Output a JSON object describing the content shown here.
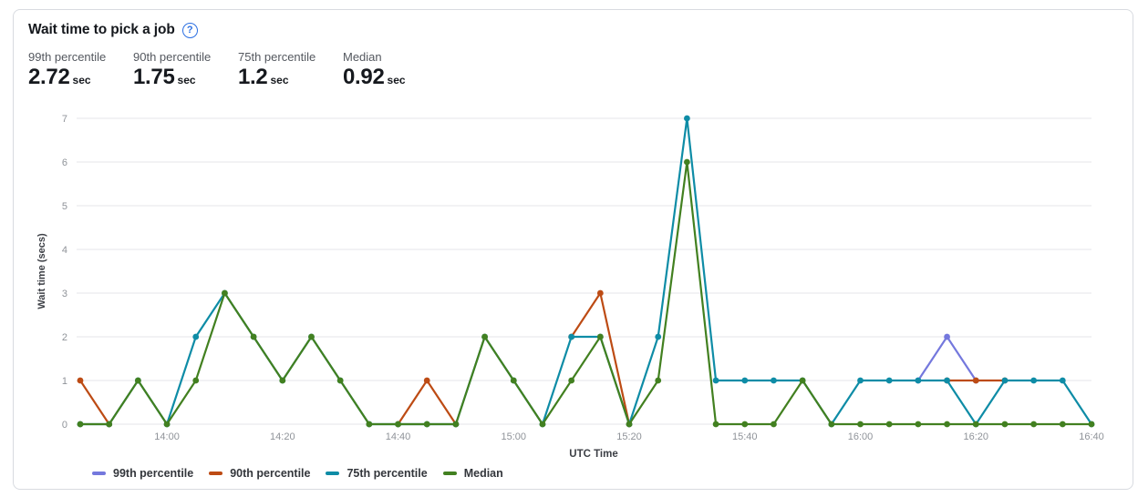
{
  "card": {
    "title": "Wait time to pick a job",
    "help_glyph": "?",
    "help_color": "#2b6fe2",
    "stats": [
      {
        "label": "99th percentile",
        "value": "2.72",
        "unit": "sec"
      },
      {
        "label": "90th percentile",
        "value": "1.75",
        "unit": "sec"
      },
      {
        "label": "75th percentile",
        "value": "1.2",
        "unit": "sec"
      },
      {
        "label": "Median",
        "value": "0.92",
        "unit": "sec"
      }
    ]
  },
  "chart_data": {
    "type": "line",
    "title": "Wait time to pick a job",
    "xlabel": "UTC Time",
    "ylabel": "Wait time (secs)",
    "ylim": [
      0,
      7
    ],
    "y_ticks": [
      0,
      1,
      2,
      3,
      4,
      5,
      6,
      7
    ],
    "grid": "horizontal",
    "grid_color": "#e4e5e8",
    "tick_label_color": "#8f9399",
    "legend_position": "bottom-left",
    "x": [
      "13:45",
      "13:50",
      "13:55",
      "14:00",
      "14:05",
      "14:10",
      "14:15",
      "14:20",
      "14:25",
      "14:30",
      "14:35",
      "14:40",
      "14:45",
      "14:50",
      "14:55",
      "15:00",
      "15:05",
      "15:10",
      "15:15",
      "15:20",
      "15:25",
      "15:30",
      "15:35",
      "15:40",
      "15:45",
      "15:50",
      "15:55",
      "16:00",
      "16:05",
      "16:10",
      "16:15",
      "16:20",
      "16:25",
      "16:30",
      "16:35",
      "16:40"
    ],
    "x_tick_labels": [
      "14:00",
      "14:20",
      "14:40",
      "15:00",
      "15:20",
      "15:40",
      "16:00",
      "16:20",
      "16:40"
    ],
    "series": [
      {
        "name": "99th percentile",
        "color": "#7478dd",
        "values": [
          null,
          null,
          null,
          null,
          null,
          null,
          null,
          null,
          null,
          null,
          null,
          null,
          null,
          null,
          null,
          null,
          null,
          null,
          null,
          null,
          null,
          null,
          null,
          null,
          null,
          null,
          null,
          null,
          null,
          1,
          2,
          1,
          null,
          null,
          null,
          null
        ]
      },
      {
        "name": "90th percentile",
        "color": "#bd4b14",
        "values": [
          1,
          0,
          null,
          null,
          null,
          null,
          null,
          null,
          null,
          null,
          null,
          0,
          1,
          0,
          null,
          null,
          null,
          2,
          3,
          0,
          null,
          null,
          null,
          null,
          null,
          null,
          null,
          null,
          null,
          null,
          1,
          1,
          1,
          null,
          null,
          null
        ]
      },
      {
        "name": "75th percentile",
        "color": "#0e8ca6",
        "values": [
          0,
          0,
          1,
          0,
          2,
          3,
          2,
          1,
          2,
          1,
          0,
          0,
          0,
          0,
          2,
          1,
          0,
          2,
          2,
          0,
          2,
          7,
          1,
          1,
          1,
          1,
          0,
          1,
          1,
          1,
          1,
          0,
          1,
          1,
          1,
          0
        ]
      },
      {
        "name": "Median",
        "color": "#428020",
        "values": [
          0,
          0,
          1,
          0,
          1,
          3,
          2,
          1,
          2,
          1,
          0,
          0,
          0,
          0,
          2,
          1,
          0,
          1,
          2,
          0,
          1,
          6,
          0,
          0,
          0,
          1,
          0,
          0,
          0,
          0,
          0,
          0,
          0,
          0,
          0,
          0
        ]
      }
    ]
  }
}
